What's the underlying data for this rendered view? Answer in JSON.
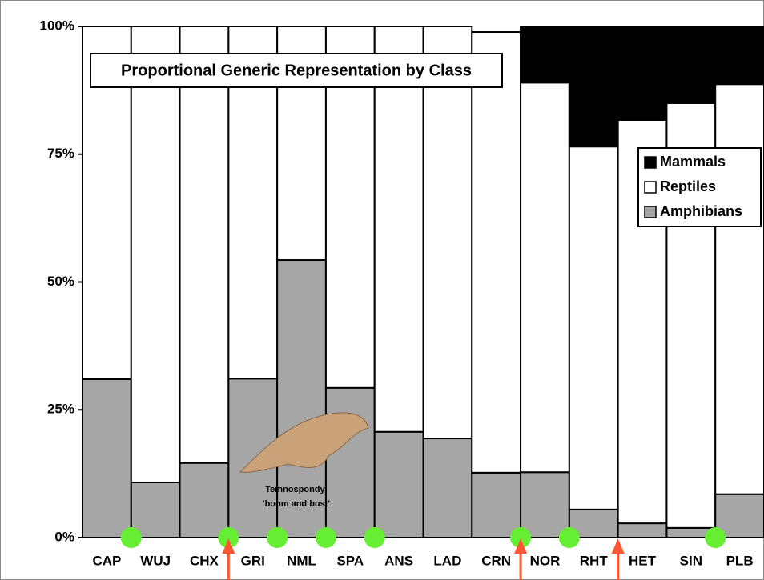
{
  "chart_data": {
    "type": "stacked-bar",
    "title": "Proportional Generic Representation by Class",
    "categories": [
      "CAP",
      "WUJ",
      "CHX",
      "GRI",
      "NML",
      "SPA",
      "ANS",
      "LAD",
      "CRN",
      "NOR",
      "RHT",
      "HET",
      "SIN",
      "PLB"
    ],
    "series": [
      {
        "name": "Mammals",
        "color": "#000000",
        "values": [
          0,
          0,
          0,
          0,
          0,
          0,
          0,
          0,
          0,
          11.0,
          23.5,
          18.3,
          15.0,
          11.3
        ]
      },
      {
        "name": "Reptiles",
        "color": "#ffffff",
        "values": [
          69.0,
          89.2,
          85.4,
          68.9,
          45.7,
          70.7,
          79.3,
          80.6,
          86.2,
          76.2,
          71.0,
          78.9,
          83.1,
          80.2
        ]
      },
      {
        "name": "Amphibians",
        "color": "#a6a6a6",
        "values": [
          31.0,
          10.8,
          14.6,
          31.1,
          54.3,
          29.3,
          20.7,
          19.4,
          12.7,
          12.8,
          5.5,
          2.8,
          1.9,
          8.5
        ]
      }
    ],
    "ylim": [
      0,
      100
    ],
    "yticks": [
      {
        "value": 0,
        "label": "0%"
      },
      {
        "value": 25,
        "label": "25%"
      },
      {
        "value": 50,
        "label": "50%"
      },
      {
        "value": 75,
        "label": "75%"
      },
      {
        "value": 100,
        "label": "100%"
      }
    ],
    "annotation": [
      "Temnospondyl",
      "'boom and bust'"
    ],
    "legend": "right"
  }
}
